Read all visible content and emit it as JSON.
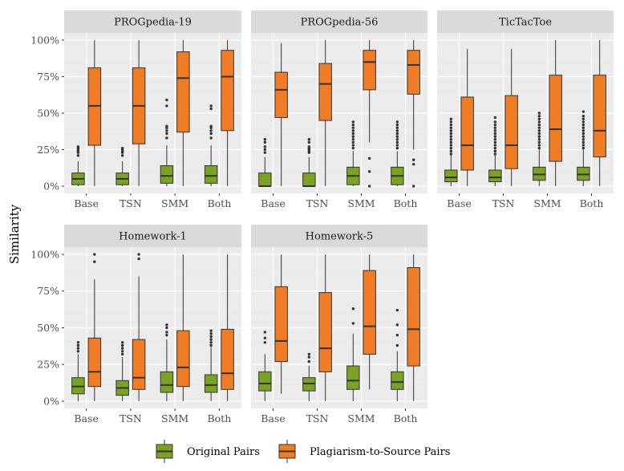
{
  "chart_data": {
    "type": "boxplot",
    "ylabel": "Similarity",
    "xlabel": "",
    "ylim": [
      0,
      100
    ],
    "y_ticks": [
      "0%",
      "25%",
      "50%",
      "75%",
      "100%"
    ],
    "categories": [
      "Base",
      "TSN",
      "SMM",
      "Both"
    ],
    "legend": {
      "position": "bottom",
      "entries": [
        {
          "name": "Original Pairs",
          "color": "#7aa324"
        },
        {
          "name": "Plagiarism-to-Source Pairs",
          "color": "#f07d25"
        }
      ]
    },
    "panels": [
      {
        "title": "PROGpedia-19",
        "series": [
          {
            "name": "Original Pairs",
            "boxes": [
              {
                "lw": 0,
                "q1": 1,
                "med": 5,
                "q3": 9,
                "uw": 17,
                "outliers": [
                  21,
                  23,
                  24,
                  25,
                  26,
                  27
                ]
              },
              {
                "lw": 0,
                "q1": 1,
                "med": 5,
                "q3": 9,
                "uw": 17,
                "outliers": [
                  21,
                  23,
                  24,
                  25,
                  26
                ]
              },
              {
                "lw": 0,
                "q1": 2,
                "med": 7,
                "q3": 14,
                "uw": 28,
                "outliers": [
                  33,
                  36,
                  38,
                  40,
                  41,
                  55,
                  59
                ]
              },
              {
                "lw": 0,
                "q1": 2,
                "med": 7,
                "q3": 14,
                "uw": 28,
                "outliers": [
                  33,
                  36,
                  38,
                  40,
                  41,
                  53,
                  55
                ]
              }
            ]
          },
          {
            "name": "Plagiarism-to-Source Pairs",
            "boxes": [
              {
                "lw": 0,
                "q1": 28,
                "med": 55,
                "q3": 81,
                "uw": 100,
                "outliers": []
              },
              {
                "lw": 0,
                "q1": 29,
                "med": 55,
                "q3": 81,
                "uw": 100,
                "outliers": []
              },
              {
                "lw": 0,
                "q1": 37,
                "med": 74,
                "q3": 92,
                "uw": 100,
                "outliers": []
              },
              {
                "lw": 0,
                "q1": 38,
                "med": 75,
                "q3": 93,
                "uw": 100,
                "outliers": []
              }
            ]
          }
        ]
      },
      {
        "title": "PROGpedia-56",
        "series": [
          {
            "name": "Original Pairs",
            "boxes": [
              {
                "lw": 0,
                "q1": 0,
                "med": 0,
                "q3": 9,
                "uw": 20,
                "outliers": [
                  23,
                  25,
                  27,
                  30,
                  32
                ]
              },
              {
                "lw": 0,
                "q1": 0,
                "med": 0,
                "q3": 9,
                "uw": 20,
                "outliers": [
                  23,
                  24,
                  25,
                  26,
                  27,
                  30,
                  32
                ]
              },
              {
                "lw": 0,
                "q1": 1,
                "med": 7,
                "q3": 13,
                "uw": 24,
                "outliers": [
                  26,
                  28,
                  30,
                  32,
                  34,
                  36,
                  38,
                  40,
                  42,
                  44
                ]
              },
              {
                "lw": 0,
                "q1": 1,
                "med": 7,
                "q3": 13,
                "uw": 24,
                "outliers": [
                  26,
                  28,
                  30,
                  32,
                  34,
                  36,
                  38,
                  40,
                  42,
                  44
                ]
              }
            ]
          },
          {
            "name": "Plagiarism-to-Source Pairs",
            "boxes": [
              {
                "lw": 0,
                "q1": 47,
                "med": 66,
                "q3": 78,
                "uw": 98,
                "outliers": []
              },
              {
                "lw": 0,
                "q1": 45,
                "med": 70,
                "q3": 84,
                "uw": 100,
                "outliers": []
              },
              {
                "lw": 30,
                "q1": 66,
                "med": 85,
                "q3": 93,
                "uw": 100,
                "outliers": [
                  0,
                  10,
                  19
                ]
              },
              {
                "lw": 25,
                "q1": 63,
                "med": 83,
                "q3": 93,
                "uw": 100,
                "outliers": [
                  0,
                  15,
                  18
                ]
              }
            ]
          }
        ]
      },
      {
        "title": "TicTacToe",
        "series": [
          {
            "name": "Original Pairs",
            "boxes": [
              {
                "lw": 0,
                "q1": 3,
                "med": 6,
                "q3": 11,
                "uw": 21,
                "outliers": [
                  22,
                  24,
                  26,
                  28,
                  30,
                  32,
                  34,
                  36,
                  38,
                  40,
                  42,
                  44,
                  46
                ]
              },
              {
                "lw": 0,
                "q1": 3,
                "med": 6,
                "q3": 11,
                "uw": 21,
                "outliers": [
                  22,
                  24,
                  26,
                  28,
                  30,
                  32,
                  34,
                  36,
                  38,
                  40,
                  42,
                  44,
                  47
                ]
              },
              {
                "lw": 0,
                "q1": 4,
                "med": 8,
                "q3": 13,
                "uw": 25,
                "outliers": [
                  26,
                  28,
                  30,
                  32,
                  34,
                  36,
                  38,
                  40,
                  42,
                  44,
                  46,
                  48,
                  50
                ]
              },
              {
                "lw": 0,
                "q1": 4,
                "med": 8,
                "q3": 13,
                "uw": 25,
                "outliers": [
                  26,
                  28,
                  30,
                  32,
                  34,
                  36,
                  38,
                  40,
                  42,
                  44,
                  46,
                  48,
                  51
                ]
              }
            ]
          },
          {
            "name": "Plagiarism-to-Source Pairs",
            "boxes": [
              {
                "lw": 0,
                "q1": 11,
                "med": 28,
                "q3": 61,
                "uw": 94,
                "outliers": []
              },
              {
                "lw": 0,
                "q1": 12,
                "med": 28,
                "q3": 62,
                "uw": 94,
                "outliers": []
              },
              {
                "lw": 0,
                "q1": 17,
                "med": 39,
                "q3": 76,
                "uw": 100,
                "outliers": []
              },
              {
                "lw": 0,
                "q1": 20,
                "med": 38,
                "q3": 76,
                "uw": 100,
                "outliers": []
              }
            ]
          }
        ]
      },
      {
        "title": "Homework-1",
        "series": [
          {
            "name": "Original Pairs",
            "boxes": [
              {
                "lw": 0,
                "q1": 5,
                "med": 10,
                "q3": 16,
                "uw": 32,
                "outliers": [
                  34,
                  36,
                  38,
                  40
                ]
              },
              {
                "lw": 0,
                "q1": 4,
                "med": 9,
                "q3": 14,
                "uw": 30,
                "outliers": [
                  32,
                  34,
                  36,
                  38,
                  40
                ]
              },
              {
                "lw": 0,
                "q1": 6,
                "med": 11,
                "q3": 20,
                "uw": 42,
                "outliers": [
                  45,
                  47,
                  50,
                  52
                ]
              },
              {
                "lw": 0,
                "q1": 6,
                "med": 11,
                "q3": 18,
                "uw": 37,
                "outliers": [
                  38,
                  40,
                  42,
                  44,
                  46,
                  48
                ]
              }
            ]
          },
          {
            "name": "Plagiarism-to-Source Pairs",
            "boxes": [
              {
                "lw": 0,
                "q1": 10,
                "med": 20,
                "q3": 43,
                "uw": 83,
                "outliers": [
                  95,
                  100
                ]
              },
              {
                "lw": 0,
                "q1": 8,
                "med": 16,
                "q3": 42,
                "uw": 85,
                "outliers": [
                  97,
                  100
                ]
              },
              {
                "lw": 0,
                "q1": 10,
                "med": 23,
                "q3": 48,
                "uw": 100,
                "outliers": []
              },
              {
                "lw": 0,
                "q1": 8,
                "med": 19,
                "q3": 49,
                "uw": 100,
                "outliers": []
              }
            ]
          }
        ]
      },
      {
        "title": "Homework-5",
        "series": [
          {
            "name": "Original Pairs",
            "boxes": [
              {
                "lw": 0,
                "q1": 7,
                "med": 12,
                "q3": 20,
                "uw": 32,
                "outliers": [
                  40,
                  43,
                  47
                ]
              },
              {
                "lw": 0,
                "q1": 7,
                "med": 12,
                "q3": 16,
                "uw": 24,
                "outliers": [
                  27,
                  30,
                  32
                ]
              },
              {
                "lw": 0,
                "q1": 8,
                "med": 14,
                "q3": 24,
                "uw": 46,
                "outliers": [
                  53,
                  63
                ]
              },
              {
                "lw": 0,
                "q1": 8,
                "med": 13,
                "q3": 20,
                "uw": 34,
                "outliers": [
                  38,
                  45,
                  52,
                  62
                ]
              }
            ]
          },
          {
            "name": "Plagiarism-to-Source Pairs",
            "boxes": [
              {
                "lw": 5,
                "q1": 27,
                "med": 41,
                "q3": 78,
                "uw": 100,
                "outliers": []
              },
              {
                "lw": 0,
                "q1": 20,
                "med": 36,
                "q3": 74,
                "uw": 100,
                "outliers": []
              },
              {
                "lw": 8,
                "q1": 32,
                "med": 51,
                "q3": 89,
                "uw": 100,
                "outliers": []
              },
              {
                "lw": 0,
                "q1": 24,
                "med": 49,
                "q3": 91,
                "uw": 100,
                "outliers": []
              }
            ]
          }
        ]
      }
    ]
  }
}
